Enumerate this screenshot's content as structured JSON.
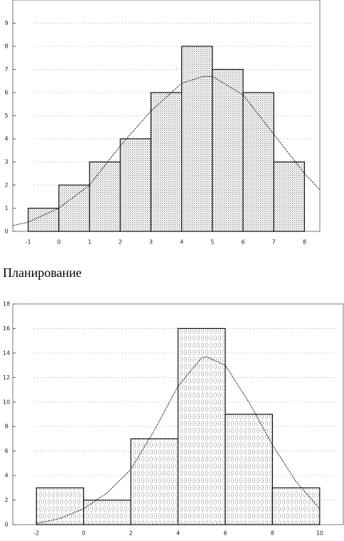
{
  "caption": "Планирование",
  "chart_data": [
    {
      "type": "histogram",
      "bins": [
        -1,
        0,
        1,
        2,
        3,
        4,
        5,
        6,
        7,
        8
      ],
      "values": [
        1,
        2,
        3,
        4,
        6,
        8,
        7,
        6,
        3
      ],
      "curve": {
        "x": [
          -1.5,
          -1,
          0,
          1,
          2,
          3,
          4,
          4.7,
          5,
          6,
          7,
          8,
          8.5
        ],
        "y": [
          0.25,
          0.4,
          1,
          2,
          3.7,
          5.2,
          6.4,
          6.7,
          6.7,
          5.9,
          4.2,
          2.5,
          1.8
        ]
      },
      "xlim": [
        -1.5,
        8.5
      ],
      "ylim": [
        0,
        10
      ],
      "xticks": [
        -1,
        0,
        1,
        2,
        3,
        4,
        5,
        6,
        7,
        8
      ],
      "yticks": [
        0,
        1,
        2,
        3,
        4,
        5,
        6,
        7,
        8,
        9
      ],
      "grid": true
    },
    {
      "type": "histogram",
      "bins": [
        -2,
        0,
        2,
        4,
        6,
        8,
        10
      ],
      "values": [
        3,
        2,
        7,
        16,
        9,
        3
      ],
      "curve": {
        "x": [
          -2,
          -1,
          0,
          1,
          2,
          3,
          4,
          5,
          5.2,
          6,
          7,
          8,
          9,
          10
        ],
        "y": [
          0.1,
          0.5,
          1.3,
          2.6,
          4.5,
          7.7,
          11.3,
          13.6,
          13.7,
          13,
          10,
          6.5,
          3.5,
          1.3
        ]
      },
      "xlim": [
        -3,
        11
      ],
      "ylim": [
        0,
        18
      ],
      "xticks": [
        -2,
        0,
        2,
        4,
        6,
        8,
        10
      ],
      "yticks": [
        0,
        2,
        4,
        6,
        8,
        10,
        12,
        14,
        16,
        18
      ],
      "grid": true
    }
  ]
}
